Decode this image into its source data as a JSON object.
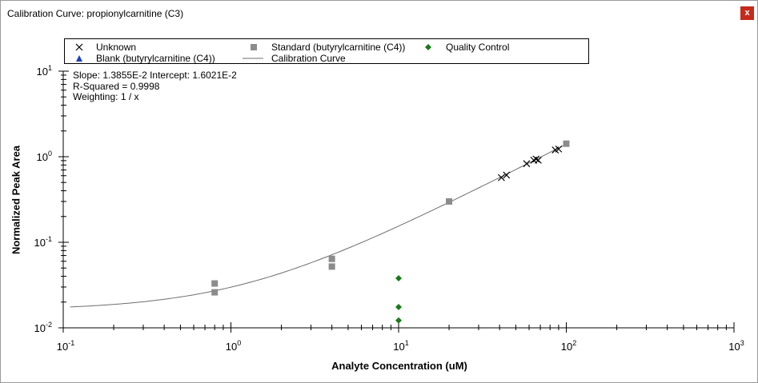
{
  "window": {
    "title": "Calibration Curve: propionylcarnitine (C3)",
    "close_label": "x"
  },
  "legend": {
    "unknown": "Unknown",
    "standard": "Standard (butyrylcarnitine (C4))",
    "quality_control": "Quality Control",
    "blank": "Blank (butyrylcarnitine (C4))",
    "calibration_curve": "Calibration Curve"
  },
  "stats": {
    "line1": "Slope: 1.3855E-2 Intercept: 1.6021E-2",
    "line2": "R-Squared = 0.9998",
    "line3": "Weighting: 1 / x"
  },
  "colors": {
    "standard": "#8c8c8c",
    "quality_control": "#1a7a1a",
    "blank": "#1f3fbf",
    "unknown": "#000000",
    "curve": "#6e6e6e",
    "close_button": "#c42b1c"
  },
  "chart_data": {
    "type": "scatter",
    "xlabel": "Analyte Concentration (uM)",
    "ylabel": "Normalized Peak Area",
    "xscale": "log",
    "yscale": "log",
    "xlim": [
      0.1,
      1000
    ],
    "ylim": [
      0.01,
      10
    ],
    "x_ticks": [
      {
        "base": "10",
        "exp": "-1",
        "value": 0.1
      },
      {
        "base": "10",
        "exp": "0",
        "value": 1
      },
      {
        "base": "10",
        "exp": "1",
        "value": 10
      },
      {
        "base": "10",
        "exp": "2",
        "value": 100
      },
      {
        "base": "10",
        "exp": "3",
        "value": 1000
      }
    ],
    "y_ticks": [
      {
        "base": "10",
        "exp": "1",
        "value": 10
      },
      {
        "base": "10",
        "exp": "0",
        "value": 1
      },
      {
        "base": "10",
        "exp": "-1",
        "value": 0.1
      },
      {
        "base": "10",
        "exp": "-2",
        "value": 0.01
      }
    ],
    "calibration_curve": {
      "slope": 0.013855,
      "intercept": 0.016021,
      "x_range": [
        0.11,
        100
      ]
    },
    "series": [
      {
        "name": "Standard (butyrylcarnitine (C4))",
        "marker": "square",
        "points": [
          [
            0.8,
            0.033
          ],
          [
            0.8,
            0.026
          ],
          [
            4.0,
            0.064
          ],
          [
            4.0,
            0.052
          ],
          [
            20,
            0.3
          ],
          [
            100,
            1.42
          ]
        ]
      },
      {
        "name": "Quality Control",
        "marker": "diamond",
        "points": [
          [
            10,
            0.038
          ],
          [
            10,
            0.0175
          ],
          [
            10,
            0.0122
          ]
        ]
      },
      {
        "name": "Unknown",
        "marker": "x",
        "points": [
          [
            41,
            0.57
          ],
          [
            44,
            0.61
          ],
          [
            58,
            0.83
          ],
          [
            64,
            0.91
          ],
          [
            66,
            0.94
          ],
          [
            68,
            0.91
          ],
          [
            86,
            1.2
          ],
          [
            90,
            1.23
          ]
        ]
      },
      {
        "name": "Blank (butyrylcarnitine (C4))",
        "marker": "triangle",
        "points": []
      }
    ]
  }
}
